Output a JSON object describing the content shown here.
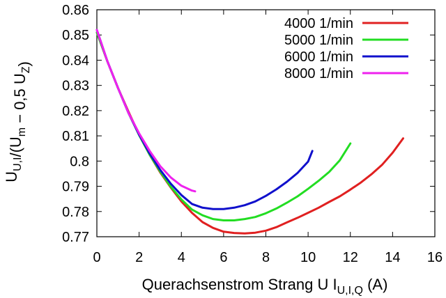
{
  "chart_data": {
    "type": "line",
    "title": "",
    "xlabel": {
      "main": "Querachsenstrom Strang U I",
      "sub": "U,I,Q",
      "unit": " (A)"
    },
    "ylabel": {
      "parts": [
        {
          "t": "U",
          "kind": "normal"
        },
        {
          "t": "U,I",
          "kind": "sub"
        },
        {
          "t": "/(U",
          "kind": "normal"
        },
        {
          "t": "m",
          "kind": "sub"
        },
        {
          "t": " − 0,5 U",
          "kind": "normal"
        },
        {
          "t": "Z",
          "kind": "sub"
        },
        {
          "t": ")",
          "kind": "normal"
        }
      ]
    },
    "xlim": [
      0,
      16
    ],
    "ylim": [
      0.77,
      0.86
    ],
    "xticks": [
      {
        "v": 0,
        "label": "0"
      },
      {
        "v": 2,
        "label": "2"
      },
      {
        "v": 4,
        "label": "4"
      },
      {
        "v": 6,
        "label": "6"
      },
      {
        "v": 8,
        "label": "8"
      },
      {
        "v": 10,
        "label": "10"
      },
      {
        "v": 12,
        "label": "12"
      },
      {
        "v": 14,
        "label": "14"
      },
      {
        "v": 16,
        "label": "16"
      }
    ],
    "yticks": [
      {
        "v": 0.77,
        "label": "0.77"
      },
      {
        "v": 0.78,
        "label": "0.78"
      },
      {
        "v": 0.79,
        "label": "0.79"
      },
      {
        "v": 0.8,
        "label": "0.8"
      },
      {
        "v": 0.81,
        "label": "0.81"
      },
      {
        "v": 0.82,
        "label": "0.82"
      },
      {
        "v": 0.83,
        "label": "0.83"
      },
      {
        "v": 0.84,
        "label": "0.84"
      },
      {
        "v": 0.85,
        "label": "0.85"
      },
      {
        "v": 0.86,
        "label": "0.86"
      }
    ],
    "grid": false,
    "legend_position": "top-right",
    "series": [
      {
        "name": "4000 1/min",
        "color": "#e02020",
        "x": [
          0,
          0.5,
          1,
          1.5,
          2,
          2.5,
          3,
          3.5,
          4,
          4.5,
          5,
          5.5,
          6,
          6.5,
          7,
          7.5,
          8,
          8.5,
          9,
          9.5,
          10,
          10.5,
          11,
          11.5,
          12,
          12.5,
          13,
          13.5,
          14,
          14.5
        ],
        "y": [
          0.851,
          0.8395,
          0.829,
          0.8195,
          0.8105,
          0.8025,
          0.7955,
          0.7895,
          0.784,
          0.7795,
          0.7758,
          0.7735,
          0.772,
          0.7715,
          0.7713,
          0.7716,
          0.7724,
          0.7738,
          0.7757,
          0.7775,
          0.7795,
          0.7815,
          0.7838,
          0.786,
          0.7887,
          0.7915,
          0.7948,
          0.7985,
          0.8033,
          0.809
        ]
      },
      {
        "name": "5000 1/min",
        "color": "#22dd22",
        "x": [
          0,
          0.5,
          1,
          1.5,
          2,
          2.5,
          3,
          3.5,
          4,
          4.5,
          5,
          5.5,
          6,
          6.5,
          7,
          7.5,
          8,
          8.5,
          9,
          9.5,
          10,
          10.5,
          11,
          11.5,
          12
        ],
        "y": [
          0.851,
          0.8395,
          0.829,
          0.819,
          0.8103,
          0.8025,
          0.7958,
          0.7898,
          0.7848,
          0.7808,
          0.7785,
          0.777,
          0.7765,
          0.7765,
          0.777,
          0.7778,
          0.7793,
          0.7812,
          0.7835,
          0.786,
          0.789,
          0.7922,
          0.7957,
          0.8003,
          0.807
        ]
      },
      {
        "name": "6000 1/min",
        "color": "#1010cc",
        "x": [
          0,
          0.5,
          1,
          1.5,
          2,
          2.5,
          3,
          3.5,
          4,
          4.5,
          5,
          5.5,
          6,
          6.5,
          7,
          7.5,
          8,
          8.5,
          9,
          9.5,
          10,
          10.2
        ],
        "y": [
          0.852,
          0.8395,
          0.829,
          0.819,
          0.8105,
          0.803,
          0.7965,
          0.791,
          0.7865,
          0.783,
          0.7815,
          0.781,
          0.781,
          0.7815,
          0.7825,
          0.784,
          0.7862,
          0.7888,
          0.7918,
          0.7953,
          0.7998,
          0.804
        ]
      },
      {
        "name": "8000 1/min",
        "color": "#ee22ee",
        "x": [
          0,
          0.5,
          1,
          1.5,
          2,
          2.5,
          3,
          3.5,
          4,
          4.5,
          4.65
        ],
        "y": [
          0.852,
          0.8395,
          0.829,
          0.819,
          0.811,
          0.804,
          0.798,
          0.7935,
          0.7902,
          0.7883,
          0.788
        ]
      }
    ]
  }
}
